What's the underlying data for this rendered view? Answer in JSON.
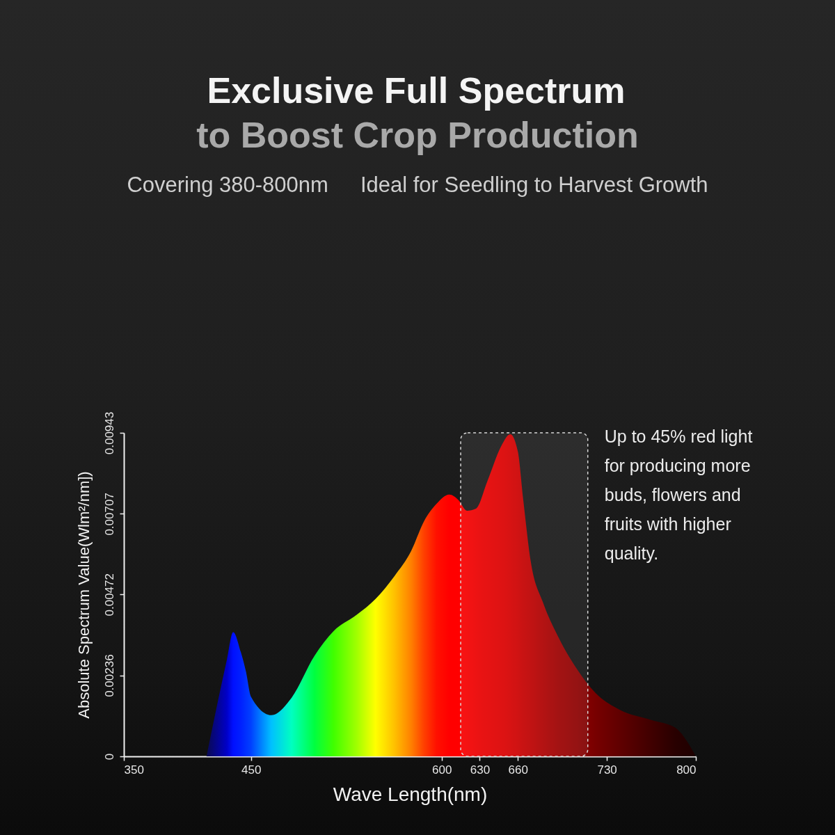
{
  "chart_data": {
    "type": "area",
    "title": "Exclusive Full Spectrum",
    "subtitle": "to Boost Crop Production",
    "annotations": [
      "Covering 380-800nm",
      "Ideal for Seedling to Harvest Growth"
    ],
    "xlabel": "Wave Length(nm)",
    "ylabel": "Absolute Spectrum Value(Wlm²/nm])",
    "x": [
      415,
      431,
      436,
      442,
      446,
      450,
      466,
      482,
      500,
      515,
      533,
      548,
      563,
      576,
      586,
      596,
      606,
      613,
      620,
      627,
      636,
      647,
      654,
      660,
      664,
      670,
      680,
      691,
      706,
      721,
      740,
      765,
      784,
      797,
      800
    ],
    "values": [
      0,
      0.00281,
      0.00362,
      0.00304,
      0.00248,
      0.00174,
      0.0012,
      0.00171,
      0.00293,
      0.00365,
      0.00412,
      0.00459,
      0.00526,
      0.00598,
      0.00684,
      0.00736,
      0.00763,
      0.00748,
      0.00716,
      0.00722,
      0.00802,
      0.00905,
      0.00939,
      0.00888,
      0.00755,
      0.00571,
      0.00446,
      0.00354,
      0.00257,
      0.00185,
      0.00136,
      0.00106,
      0.00083,
      0.0002,
      0
    ],
    "colors": [
      "#0a0a50",
      "#0000c8",
      "#0010ff",
      "#0020ff",
      "#0030ff",
      "#0040ff",
      "#00c0ff",
      "#00ffc0",
      "#00ff40",
      "#40ff00",
      "#a0ff00",
      "#ffff00",
      "#ffc000",
      "#ff8000",
      "#ff4000",
      "#ff1000",
      "#ff0000",
      "#ff0000",
      "#f80000",
      "#f00000",
      "#e80000",
      "#e00000",
      "#d80000",
      "#d00000",
      "#c80000",
      "#c00000",
      "#b00000",
      "#a00000",
      "#900000",
      "#780000",
      "#600000",
      "#400000",
      "#280000",
      "#200000",
      "#1a0000"
    ],
    "xlim": [
      350,
      800
    ],
    "xticks": [
      350,
      450,
      600,
      630,
      660,
      730,
      800
    ],
    "ylim": [
      0,
      0.00943
    ],
    "yticks": [
      0,
      0.00236,
      0.00472,
      0.00707,
      0.00943
    ],
    "bands": [
      {
        "axis": "x",
        "from": 615,
        "to": 715,
        "color": "#d8d8d8",
        "label": "Up to 45% red light for producing more buds, flowers and fruits with higher quality."
      }
    ]
  }
}
